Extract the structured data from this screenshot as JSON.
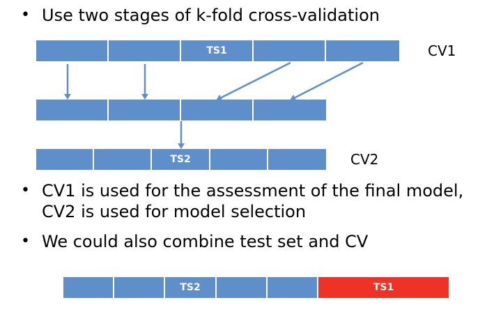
{
  "colors": {
    "fold": "#5f8fcb",
    "test_set": "#ee3226",
    "arrow": "#5f8fcb"
  },
  "bullets": {
    "b1": "Use two stages of k-fold cross-validation",
    "b2_line1": "CV1 is used for the assessment of the final model,",
    "b2_line2": "CV2 is used for model selection",
    "b3": "We could also combine test set and CV",
    "marker": "•"
  },
  "cv1": {
    "label": "CV1",
    "segments": [
      "",
      "",
      "TS1",
      "",
      ""
    ]
  },
  "reduced": {
    "segments": [
      "",
      "",
      "",
      ""
    ]
  },
  "cv2": {
    "label": "CV2",
    "segments": [
      "",
      "",
      "TS2",
      "",
      ""
    ]
  },
  "combined": {
    "segments": [
      "",
      "",
      "TS2",
      "",
      ""
    ],
    "test_segment": "TS1"
  }
}
